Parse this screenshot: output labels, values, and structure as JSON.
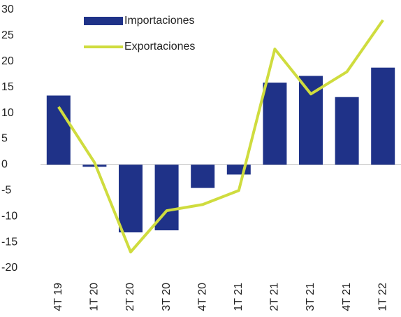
{
  "chart_data": {
    "type": "bar_line",
    "categories": [
      "4T 19",
      "1T 20",
      "2T 20",
      "3T 20",
      "4T 20",
      "1T 21",
      "2T 21",
      "3T 21",
      "4T 21",
      "1T 22"
    ],
    "series": [
      {
        "name": "Importaciones",
        "type": "bar",
        "color": "#1f3288",
        "values": [
          13.4,
          -0.4,
          -13.1,
          -12.7,
          -4.5,
          -1.9,
          15.9,
          17.2,
          13.1,
          18.8
        ]
      },
      {
        "name": "Exportaciones",
        "type": "line",
        "color": "#cfdc3e",
        "values": [
          11.2,
          0.4,
          -16.9,
          -8.9,
          -7.7,
          -5.0,
          22.4,
          13.7,
          18.0,
          28.0
        ]
      }
    ],
    "ylim": [
      -20,
      30
    ],
    "yticks": [
      -20,
      -15,
      -10,
      -5,
      0,
      5,
      10,
      15,
      20,
      25,
      30
    ],
    "legend": "upper left"
  }
}
